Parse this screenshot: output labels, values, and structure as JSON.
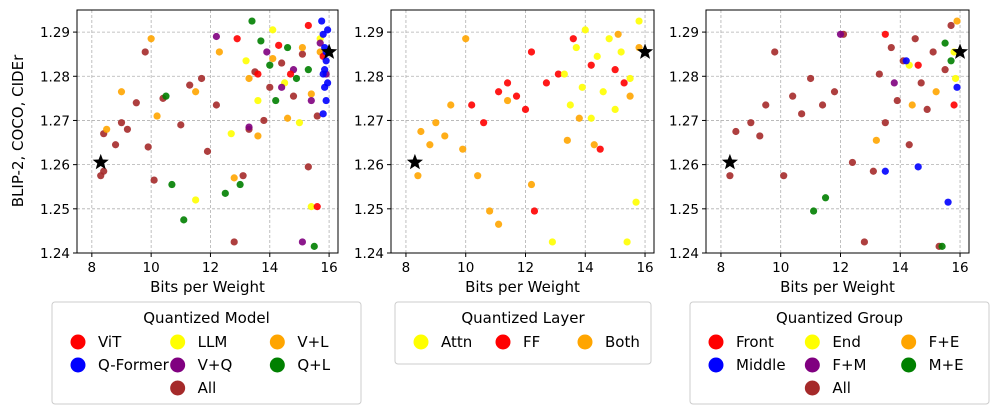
{
  "figure": {
    "ylabel": "BLIP-2, COCO, CIDEr"
  },
  "chart_data": [
    {
      "type": "scatter",
      "xlabel": "Bits per Weight",
      "ylabel": "BLIP-2, COCO, CIDEr",
      "xlim": [
        7.5,
        16.3
      ],
      "ylim": [
        1.24,
        1.295
      ],
      "xticks": [
        "8",
        "10",
        "12",
        "14",
        "16"
      ],
      "yticks": [
        "1.24",
        "1.25",
        "1.26",
        "1.27",
        "1.28",
        "1.29"
      ],
      "grid": true,
      "legend_title": "Quantized Model",
      "legend": [
        {
          "label": "ViT",
          "color": "#ff0000"
        },
        {
          "label": "Q-Former",
          "color": "#0000ff"
        },
        {
          "label": "LLM",
          "color": "#ffff00"
        },
        {
          "label": "V+Q",
          "color": "#800080"
        },
        {
          "label": "V+L",
          "color": "#ffa500"
        },
        {
          "label": "Q+L",
          "color": "#008000"
        },
        {
          "label": "All",
          "color": "#a52a2a"
        }
      ],
      "series": [
        {
          "name": "All",
          "color": "#a52a2a",
          "points": [
            [
              8.3,
              1.2575
            ],
            [
              8.4,
              1.2585
            ],
            [
              8.4,
              1.267
            ],
            [
              8.8,
              1.2645
            ],
            [
              9.0,
              1.2695
            ],
            [
              9.2,
              1.268
            ],
            [
              9.5,
              1.274
            ],
            [
              9.8,
              1.2855
            ],
            [
              9.9,
              1.264
            ],
            [
              10.1,
              1.2565
            ],
            [
              10.4,
              1.275
            ],
            [
              11.0,
              1.269
            ],
            [
              11.3,
              1.278
            ],
            [
              11.7,
              1.2795
            ],
            [
              11.9,
              1.263
            ],
            [
              12.2,
              1.2735
            ],
            [
              12.8,
              1.2425
            ],
            [
              13.1,
              1.2575
            ],
            [
              13.3,
              1.268
            ],
            [
              13.5,
              1.281
            ],
            [
              13.8,
              1.27
            ],
            [
              14.0,
              1.2775
            ],
            [
              14.4,
              1.283
            ],
            [
              14.8,
              1.2755
            ],
            [
              15.1,
              1.285
            ],
            [
              15.3,
              1.2595
            ],
            [
              15.6,
              1.271
            ]
          ]
        },
        {
          "name": "V+L",
          "color": "#ffa500",
          "points": [
            [
              8.5,
              1.268
            ],
            [
              9.0,
              1.2765
            ],
            [
              10.0,
              1.2885
            ],
            [
              10.2,
              1.271
            ],
            [
              11.5,
              1.2765
            ],
            [
              12.3,
              1.2855
            ],
            [
              12.8,
              1.257
            ],
            [
              13.3,
              1.2795
            ],
            [
              13.6,
              1.2665
            ],
            [
              14.1,
              1.284
            ],
            [
              14.6,
              1.2705
            ],
            [
              15.1,
              1.2865
            ],
            [
              15.4,
              1.276
            ],
            [
              15.7,
              1.2855
            ]
          ]
        },
        {
          "name": "Q+L",
          "color": "#008000",
          "points": [
            [
              10.5,
              1.2755
            ],
            [
              10.7,
              1.2555
            ],
            [
              11.1,
              1.2475
            ],
            [
              12.5,
              1.2535
            ],
            [
              13.0,
              1.2555
            ],
            [
              13.4,
              1.2925
            ],
            [
              13.7,
              1.288
            ],
            [
              14.0,
              1.2825
            ],
            [
              14.2,
              1.2745
            ],
            [
              14.6,
              1.2865
            ],
            [
              14.9,
              1.2795
            ],
            [
              15.3,
              1.2815
            ],
            [
              15.5,
              1.2415
            ]
          ]
        },
        {
          "name": "LLM",
          "color": "#ffff00",
          "points": [
            [
              11.5,
              1.252
            ],
            [
              12.7,
              1.267
            ],
            [
              13.2,
              1.2835
            ],
            [
              13.6,
              1.2745
            ],
            [
              14.1,
              1.2905
            ],
            [
              14.5,
              1.2785
            ],
            [
              15.0,
              1.2695
            ],
            [
              15.4,
              1.2505
            ],
            [
              15.7,
              1.2885
            ]
          ]
        },
        {
          "name": "V+Q",
          "color": "#800080",
          "points": [
            [
              12.2,
              1.289
            ],
            [
              13.3,
              1.2685
            ],
            [
              13.9,
              1.2855
            ],
            [
              14.4,
              1.2775
            ],
            [
              14.8,
              1.2815
            ],
            [
              15.1,
              1.2425
            ],
            [
              15.4,
              1.2745
            ],
            [
              15.7,
              1.2875
            ],
            [
              15.9,
              1.2805
            ]
          ]
        },
        {
          "name": "ViT",
          "color": "#ff0000",
          "points": [
            [
              12.9,
              1.2885
            ],
            [
              13.6,
              1.2805
            ],
            [
              14.3,
              1.287
            ],
            [
              14.7,
              1.2805
            ],
            [
              15.3,
              1.2915
            ],
            [
              15.6,
              1.2505
            ],
            [
              15.8,
              1.2845
            ]
          ]
        },
        {
          "name": "Q-Former",
          "color": "#0000ff",
          "points": [
            [
              15.75,
              1.2925
            ],
            [
              15.8,
              1.2895
            ],
            [
              15.85,
              1.2865
            ],
            [
              15.9,
              1.2835
            ],
            [
              15.8,
              1.2805
            ],
            [
              15.85,
              1.2775
            ],
            [
              15.9,
              1.2745
            ],
            [
              15.8,
              1.2715
            ],
            [
              15.95,
              1.2905
            ],
            [
              15.9,
              1.2855
            ],
            [
              15.85,
              1.2815
            ],
            [
              15.95,
              1.2785
            ]
          ]
        }
      ],
      "stars": [
        [
          8.3,
          1.2605
        ],
        [
          16.0,
          1.2855
        ]
      ]
    },
    {
      "type": "scatter",
      "xlabel": "Bits per Weight",
      "xlim": [
        7.5,
        16.3
      ],
      "ylim": [
        1.24,
        1.295
      ],
      "xticks": [
        "8",
        "10",
        "12",
        "14",
        "16"
      ],
      "yticks": [
        "1.24",
        "1.25",
        "1.26",
        "1.27",
        "1.28",
        "1.29"
      ],
      "grid": true,
      "legend_title": "Quantized Layer",
      "legend": [
        {
          "label": "Attn",
          "color": "#ffff00"
        },
        {
          "label": "FF",
          "color": "#ff0000"
        },
        {
          "label": "Both",
          "color": "#ffa500"
        }
      ],
      "series": [
        {
          "name": "Both",
          "color": "#ffa500",
          "points": [
            [
              8.4,
              1.2575
            ],
            [
              8.5,
              1.2675
            ],
            [
              8.8,
              1.2645
            ],
            [
              9.0,
              1.2695
            ],
            [
              9.3,
              1.2665
            ],
            [
              9.5,
              1.2735
            ],
            [
              9.9,
              1.2635
            ],
            [
              10.0,
              1.2885
            ],
            [
              10.4,
              1.2575
            ],
            [
              10.8,
              1.2495
            ],
            [
              11.1,
              1.2465
            ],
            [
              11.4,
              1.2745
            ],
            [
              12.2,
              1.2555
            ],
            [
              13.4,
              1.2655
            ],
            [
              13.8,
              1.2705
            ],
            [
              14.3,
              1.2645
            ],
            [
              15.1,
              1.2895
            ],
            [
              15.5,
              1.2755
            ],
            [
              15.8,
              1.2865
            ]
          ]
        },
        {
          "name": "FF",
          "color": "#ff0000",
          "points": [
            [
              10.2,
              1.2735
            ],
            [
              10.6,
              1.2695
            ],
            [
              11.1,
              1.2765
            ],
            [
              11.4,
              1.2785
            ],
            [
              11.7,
              1.2755
            ],
            [
              12.0,
              1.2725
            ],
            [
              12.2,
              1.2855
            ],
            [
              12.3,
              1.2495
            ],
            [
              12.7,
              1.2785
            ],
            [
              13.1,
              1.2805
            ],
            [
              13.6,
              1.2885
            ],
            [
              14.2,
              1.2825
            ],
            [
              14.5,
              1.2635
            ],
            [
              15.0,
              1.2815
            ],
            [
              15.3,
              1.2785
            ]
          ]
        },
        {
          "name": "Attn",
          "color": "#ffff00",
          "points": [
            [
              12.9,
              1.2425
            ],
            [
              13.3,
              1.2805
            ],
            [
              13.5,
              1.2735
            ],
            [
              13.7,
              1.2865
            ],
            [
              13.9,
              1.2775
            ],
            [
              14.0,
              1.2905
            ],
            [
              14.2,
              1.2705
            ],
            [
              14.4,
              1.2845
            ],
            [
              14.6,
              1.2765
            ],
            [
              14.8,
              1.2885
            ],
            [
              15.0,
              1.2725
            ],
            [
              15.2,
              1.2855
            ],
            [
              15.4,
              1.2425
            ],
            [
              15.5,
              1.2795
            ],
            [
              15.7,
              1.2515
            ],
            [
              15.8,
              1.2925
            ]
          ]
        }
      ],
      "stars": [
        [
          8.3,
          1.2605
        ],
        [
          16.0,
          1.2855
        ]
      ]
    },
    {
      "type": "scatter",
      "xlabel": "Bits per Weight",
      "xlim": [
        7.5,
        16.3
      ],
      "ylim": [
        1.24,
        1.295
      ],
      "xticks": [
        "8",
        "10",
        "12",
        "14",
        "16"
      ],
      "yticks": [
        "1.24",
        "1.25",
        "1.26",
        "1.27",
        "1.28",
        "1.29"
      ],
      "grid": true,
      "legend_title": "Quantized Group",
      "legend": [
        {
          "label": "Front",
          "color": "#ff0000"
        },
        {
          "label": "Middle",
          "color": "#0000ff"
        },
        {
          "label": "End",
          "color": "#ffff00"
        },
        {
          "label": "F+M",
          "color": "#800080"
        },
        {
          "label": "F+E",
          "color": "#ffa500"
        },
        {
          "label": "M+E",
          "color": "#008000"
        },
        {
          "label": "All",
          "color": "#a52a2a"
        }
      ],
      "series": [
        {
          "name": "All",
          "color": "#a52a2a",
          "points": [
            [
              8.3,
              1.2575
            ],
            [
              8.5,
              1.2675
            ],
            [
              9.0,
              1.2695
            ],
            [
              9.3,
              1.2665
            ],
            [
              9.5,
              1.2735
            ],
            [
              9.8,
              1.2855
            ],
            [
              10.1,
              1.2575
            ],
            [
              10.4,
              1.2755
            ],
            [
              10.7,
              1.2715
            ],
            [
              11.0,
              1.2795
            ],
            [
              11.4,
              1.2735
            ],
            [
              11.8,
              1.2765
            ],
            [
              12.1,
              1.2895
            ],
            [
              12.4,
              1.2605
            ],
            [
              12.8,
              1.2425
            ],
            [
              13.1,
              1.2585
            ],
            [
              13.3,
              1.2805
            ],
            [
              13.5,
              1.2695
            ],
            [
              13.7,
              1.2865
            ],
            [
              13.9,
              1.2745
            ],
            [
              14.1,
              1.2835
            ],
            [
              14.3,
              1.2645
            ],
            [
              14.5,
              1.2885
            ],
            [
              14.7,
              1.2785
            ],
            [
              14.9,
              1.2725
            ],
            [
              15.1,
              1.2855
            ],
            [
              15.3,
              1.2415
            ],
            [
              15.5,
              1.2815
            ],
            [
              15.7,
              1.2915
            ]
          ]
        },
        {
          "name": "F+M",
          "color": "#800080",
          "points": [
            [
              12.0,
              1.2895
            ],
            [
              13.8,
              1.2785
            ]
          ]
        },
        {
          "name": "F+E",
          "color": "#ffa500",
          "points": [
            [
              13.2,
              1.2655
            ],
            [
              14.4,
              1.2735
            ],
            [
              15.2,
              1.2765
            ],
            [
              15.9,
              1.2925
            ]
          ]
        },
        {
          "name": "End",
          "color": "#ffff00",
          "points": [
            [
              14.3,
              1.2825
            ],
            [
              15.8,
              1.2855
            ],
            [
              15.85,
              1.2795
            ]
          ]
        },
        {
          "name": "M+E",
          "color": "#008000",
          "points": [
            [
              11.1,
              1.2495
            ],
            [
              11.5,
              1.2525
            ],
            [
              15.4,
              1.2415
            ],
            [
              15.5,
              1.2875
            ],
            [
              15.7,
              1.2835
            ]
          ]
        },
        {
          "name": "Front",
          "color": "#ff0000",
          "points": [
            [
              13.5,
              1.2895
            ],
            [
              14.6,
              1.2825
            ],
            [
              15.8,
              1.2735
            ]
          ]
        },
        {
          "name": "Middle",
          "color": "#0000ff",
          "points": [
            [
              13.5,
              1.2585
            ],
            [
              14.2,
              1.2835
            ],
            [
              14.6,
              1.2595
            ],
            [
              15.6,
              1.2515
            ],
            [
              15.9,
              1.2775
            ]
          ]
        }
      ],
      "stars": [
        [
          8.3,
          1.2605
        ],
        [
          16.0,
          1.2855
        ]
      ]
    }
  ]
}
